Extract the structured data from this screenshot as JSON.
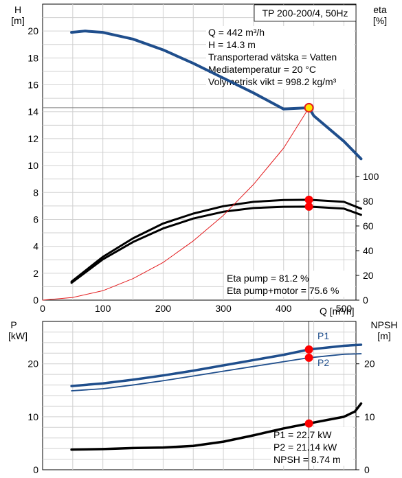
{
  "chart_data": [
    {
      "type": "line",
      "title": "TP 200-200/4, 50Hz",
      "x_axis": {
        "label": "Q [m³/h]",
        "range": [
          0,
          520
        ],
        "ticks": [
          0,
          100,
          200,
          300,
          400,
          500
        ]
      },
      "y_left": {
        "label": "H",
        "unit": "[m]",
        "range": [
          0,
          22
        ],
        "ticks": [
          0,
          2,
          4,
          6,
          8,
          10,
          12,
          14,
          16,
          18,
          20
        ]
      },
      "y_right": {
        "label": "eta",
        "unit": "[%]",
        "range": [
          0,
          100
        ],
        "ticks": [
          0,
          20,
          40,
          60,
          80,
          100
        ]
      },
      "grid": true,
      "duty_point": {
        "Q": 442,
        "H": 14.3,
        "eta_pump": 81.2,
        "eta_pump_motor": 75.6
      },
      "info_lines": [
        "Q = 442 m³/h",
        "H = 14.3 m",
        "Transporterad vätska = Vatten",
        "Mediatemperatur = 20 °C",
        "Volymetrisk vikt = 998.2 kg/m³"
      ],
      "eta_lines": [
        "Eta pump = 81.2 %",
        "Eta pump+motor = 75.6 %"
      ],
      "series": [
        {
          "key": "H",
          "axis": "left",
          "color": "#1f4e8c",
          "points": [
            [
              48,
              19.9
            ],
            [
              70,
              20.0
            ],
            [
              100,
              19.9
            ],
            [
              150,
              19.4
            ],
            [
              200,
              18.6
            ],
            [
              250,
              17.6
            ],
            [
              300,
              16.5
            ],
            [
              350,
              15.4
            ],
            [
              400,
              14.2
            ],
            [
              442,
              14.3
            ],
            [
              450,
              13.7
            ],
            [
              500,
              11.8
            ],
            [
              570,
              10.5
            ]
          ]
        },
        {
          "key": "eta_pump",
          "axis": "right",
          "color": "#000000",
          "points": [
            [
              48,
              15
            ],
            [
              100,
              35
            ],
            [
              150,
              50
            ],
            [
              200,
              62
            ],
            [
              250,
              70
            ],
            [
              300,
              76
            ],
            [
              350,
              79.5
            ],
            [
              400,
              81
            ],
            [
              442,
              81.2
            ],
            [
              500,
              79.5
            ],
            [
              570,
              74
            ]
          ]
        },
        {
          "key": "eta_pump_motor",
          "axis": "right",
          "color": "#000000",
          "points": [
            [
              48,
              14
            ],
            [
              100,
              33
            ],
            [
              150,
              47
            ],
            [
              200,
              58
            ],
            [
              250,
              66
            ],
            [
              300,
              71.5
            ],
            [
              350,
              74.5
            ],
            [
              400,
              75.5
            ],
            [
              442,
              75.6
            ],
            [
              500,
              74
            ],
            [
              570,
              69
            ]
          ]
        },
        {
          "key": "system_curve",
          "axis": "left",
          "color": "#e31a1c",
          "points": [
            [
              0,
              0
            ],
            [
              50,
              0.2
            ],
            [
              100,
              0.7
            ],
            [
              150,
              1.6
            ],
            [
              200,
              2.8
            ],
            [
              250,
              4.4
            ],
            [
              300,
              6.3
            ],
            [
              350,
              8.6
            ],
            [
              400,
              11.3
            ],
            [
              442,
              14.3
            ]
          ]
        }
      ]
    },
    {
      "type": "line",
      "x_axis": {
        "range": [
          0,
          520
        ],
        "ticks": [
          0,
          100,
          200,
          300,
          400,
          500
        ]
      },
      "y_left": {
        "label": "P",
        "unit": "[kW]",
        "range": [
          0,
          28
        ],
        "ticks": [
          0,
          10,
          20
        ]
      },
      "y_right": {
        "label": "NPSH",
        "unit": "[m]",
        "range": [
          0,
          28
        ],
        "ticks": [
          0,
          10,
          20
        ]
      },
      "grid": true,
      "duty_point": {
        "Q": 442,
        "P1": 22.7,
        "P2": 21.14,
        "NPSH": 8.74
      },
      "info_lines": [
        "P1 = 22.7 kW",
        "P2 = 21.14 kW",
        "NPSH = 8.74 m"
      ],
      "series": [
        {
          "name": "P1",
          "axis": "left",
          "color": "#1f4e8c",
          "points": [
            [
              48,
              15.8
            ],
            [
              100,
              16.3
            ],
            [
              150,
              17.0
            ],
            [
              200,
              17.8
            ],
            [
              250,
              18.7
            ],
            [
              300,
              19.7
            ],
            [
              350,
              20.7
            ],
            [
              400,
              21.7
            ],
            [
              442,
              22.7
            ],
            [
              500,
              23.4
            ],
            [
              570,
              23.6
            ]
          ]
        },
        {
          "name": "P2",
          "axis": "left",
          "color": "#1f4e8c",
          "points": [
            [
              48,
              14.9
            ],
            [
              100,
              15.3
            ],
            [
              150,
              16.0
            ],
            [
              200,
              16.8
            ],
            [
              250,
              17.7
            ],
            [
              300,
              18.6
            ],
            [
              350,
              19.5
            ],
            [
              400,
              20.4
            ],
            [
              442,
              21.14
            ],
            [
              500,
              21.8
            ],
            [
              570,
              21.9
            ]
          ]
        },
        {
          "key": "NPSH",
          "axis": "right",
          "color": "#000000",
          "points": [
            [
              48,
              3.8
            ],
            [
              100,
              3.9
            ],
            [
              150,
              4.1
            ],
            [
              200,
              4.2
            ],
            [
              250,
              4.5
            ],
            [
              300,
              5.3
            ],
            [
              350,
              6.5
            ],
            [
              400,
              7.8
            ],
            [
              442,
              8.74
            ],
            [
              500,
              10.0
            ],
            [
              545,
              11.0
            ],
            [
              570,
              12.5
            ]
          ]
        }
      ]
    }
  ]
}
